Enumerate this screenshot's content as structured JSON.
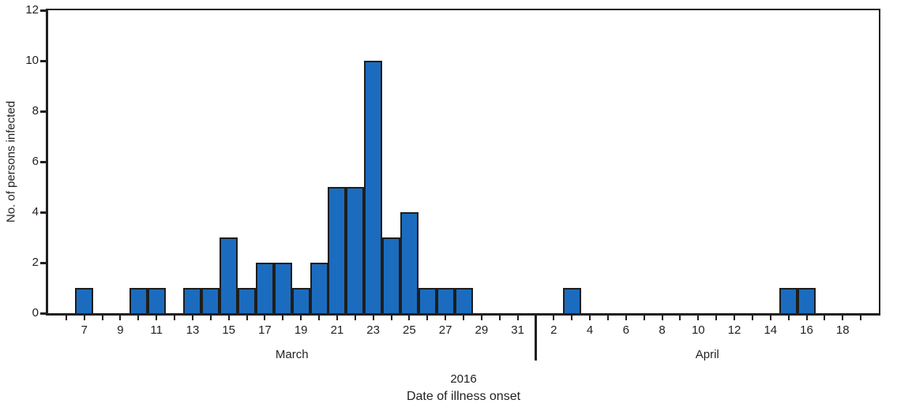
{
  "chart_data": {
    "type": "bar",
    "subtype": "epi-curve-histogram",
    "title": "",
    "ylabel": "No. of persons infected",
    "xlabel": "Date of illness onset",
    "year": "2016",
    "ylim": [
      0,
      12
    ],
    "y_ticks": [
      0,
      2,
      4,
      6,
      8,
      10,
      12
    ],
    "grid": false,
    "legend": "none",
    "axis_color": "#231f20",
    "bar_fill": "#1b6cbe",
    "bar_stroke": "#1e1e1e",
    "x_domain": {
      "start_month": "March",
      "start_day": 5,
      "end_month": "April",
      "end_day": 20,
      "days_in_march": 31
    },
    "months": [
      {
        "label": "March",
        "labeled_days": [
          7,
          9,
          11,
          13,
          15,
          17,
          19,
          21,
          23,
          25,
          27,
          29,
          31
        ],
        "tick_from": 6,
        "tick_to": 31
      },
      {
        "label": "April",
        "labeled_days": [
          2,
          4,
          6,
          8,
          10,
          12,
          14,
          16,
          18
        ],
        "tick_from": 2,
        "tick_to": 19
      }
    ],
    "separator": {
      "month": "April",
      "day": 1
    },
    "cases": [
      {
        "month": "March",
        "day": 7,
        "count": 1
      },
      {
        "month": "March",
        "day": 10,
        "count": 1
      },
      {
        "month": "March",
        "day": 11,
        "count": 1
      },
      {
        "month": "March",
        "day": 13,
        "count": 1
      },
      {
        "month": "March",
        "day": 14,
        "count": 1
      },
      {
        "month": "March",
        "day": 15,
        "count": 3
      },
      {
        "month": "March",
        "day": 16,
        "count": 1
      },
      {
        "month": "March",
        "day": 17,
        "count": 2
      },
      {
        "month": "March",
        "day": 18,
        "count": 2
      },
      {
        "month": "March",
        "day": 19,
        "count": 1
      },
      {
        "month": "March",
        "day": 20,
        "count": 2
      },
      {
        "month": "March",
        "day": 21,
        "count": 5
      },
      {
        "month": "March",
        "day": 22,
        "count": 5
      },
      {
        "month": "March",
        "day": 23,
        "count": 10
      },
      {
        "month": "March",
        "day": 24,
        "count": 3
      },
      {
        "month": "March",
        "day": 25,
        "count": 4
      },
      {
        "month": "March",
        "day": 26,
        "count": 1
      },
      {
        "month": "March",
        "day": 27,
        "count": 1
      },
      {
        "month": "March",
        "day": 28,
        "count": 1
      },
      {
        "month": "April",
        "day": 3,
        "count": 1
      },
      {
        "month": "April",
        "day": 15,
        "count": 1
      },
      {
        "month": "April",
        "day": 16,
        "count": 1
      }
    ]
  }
}
